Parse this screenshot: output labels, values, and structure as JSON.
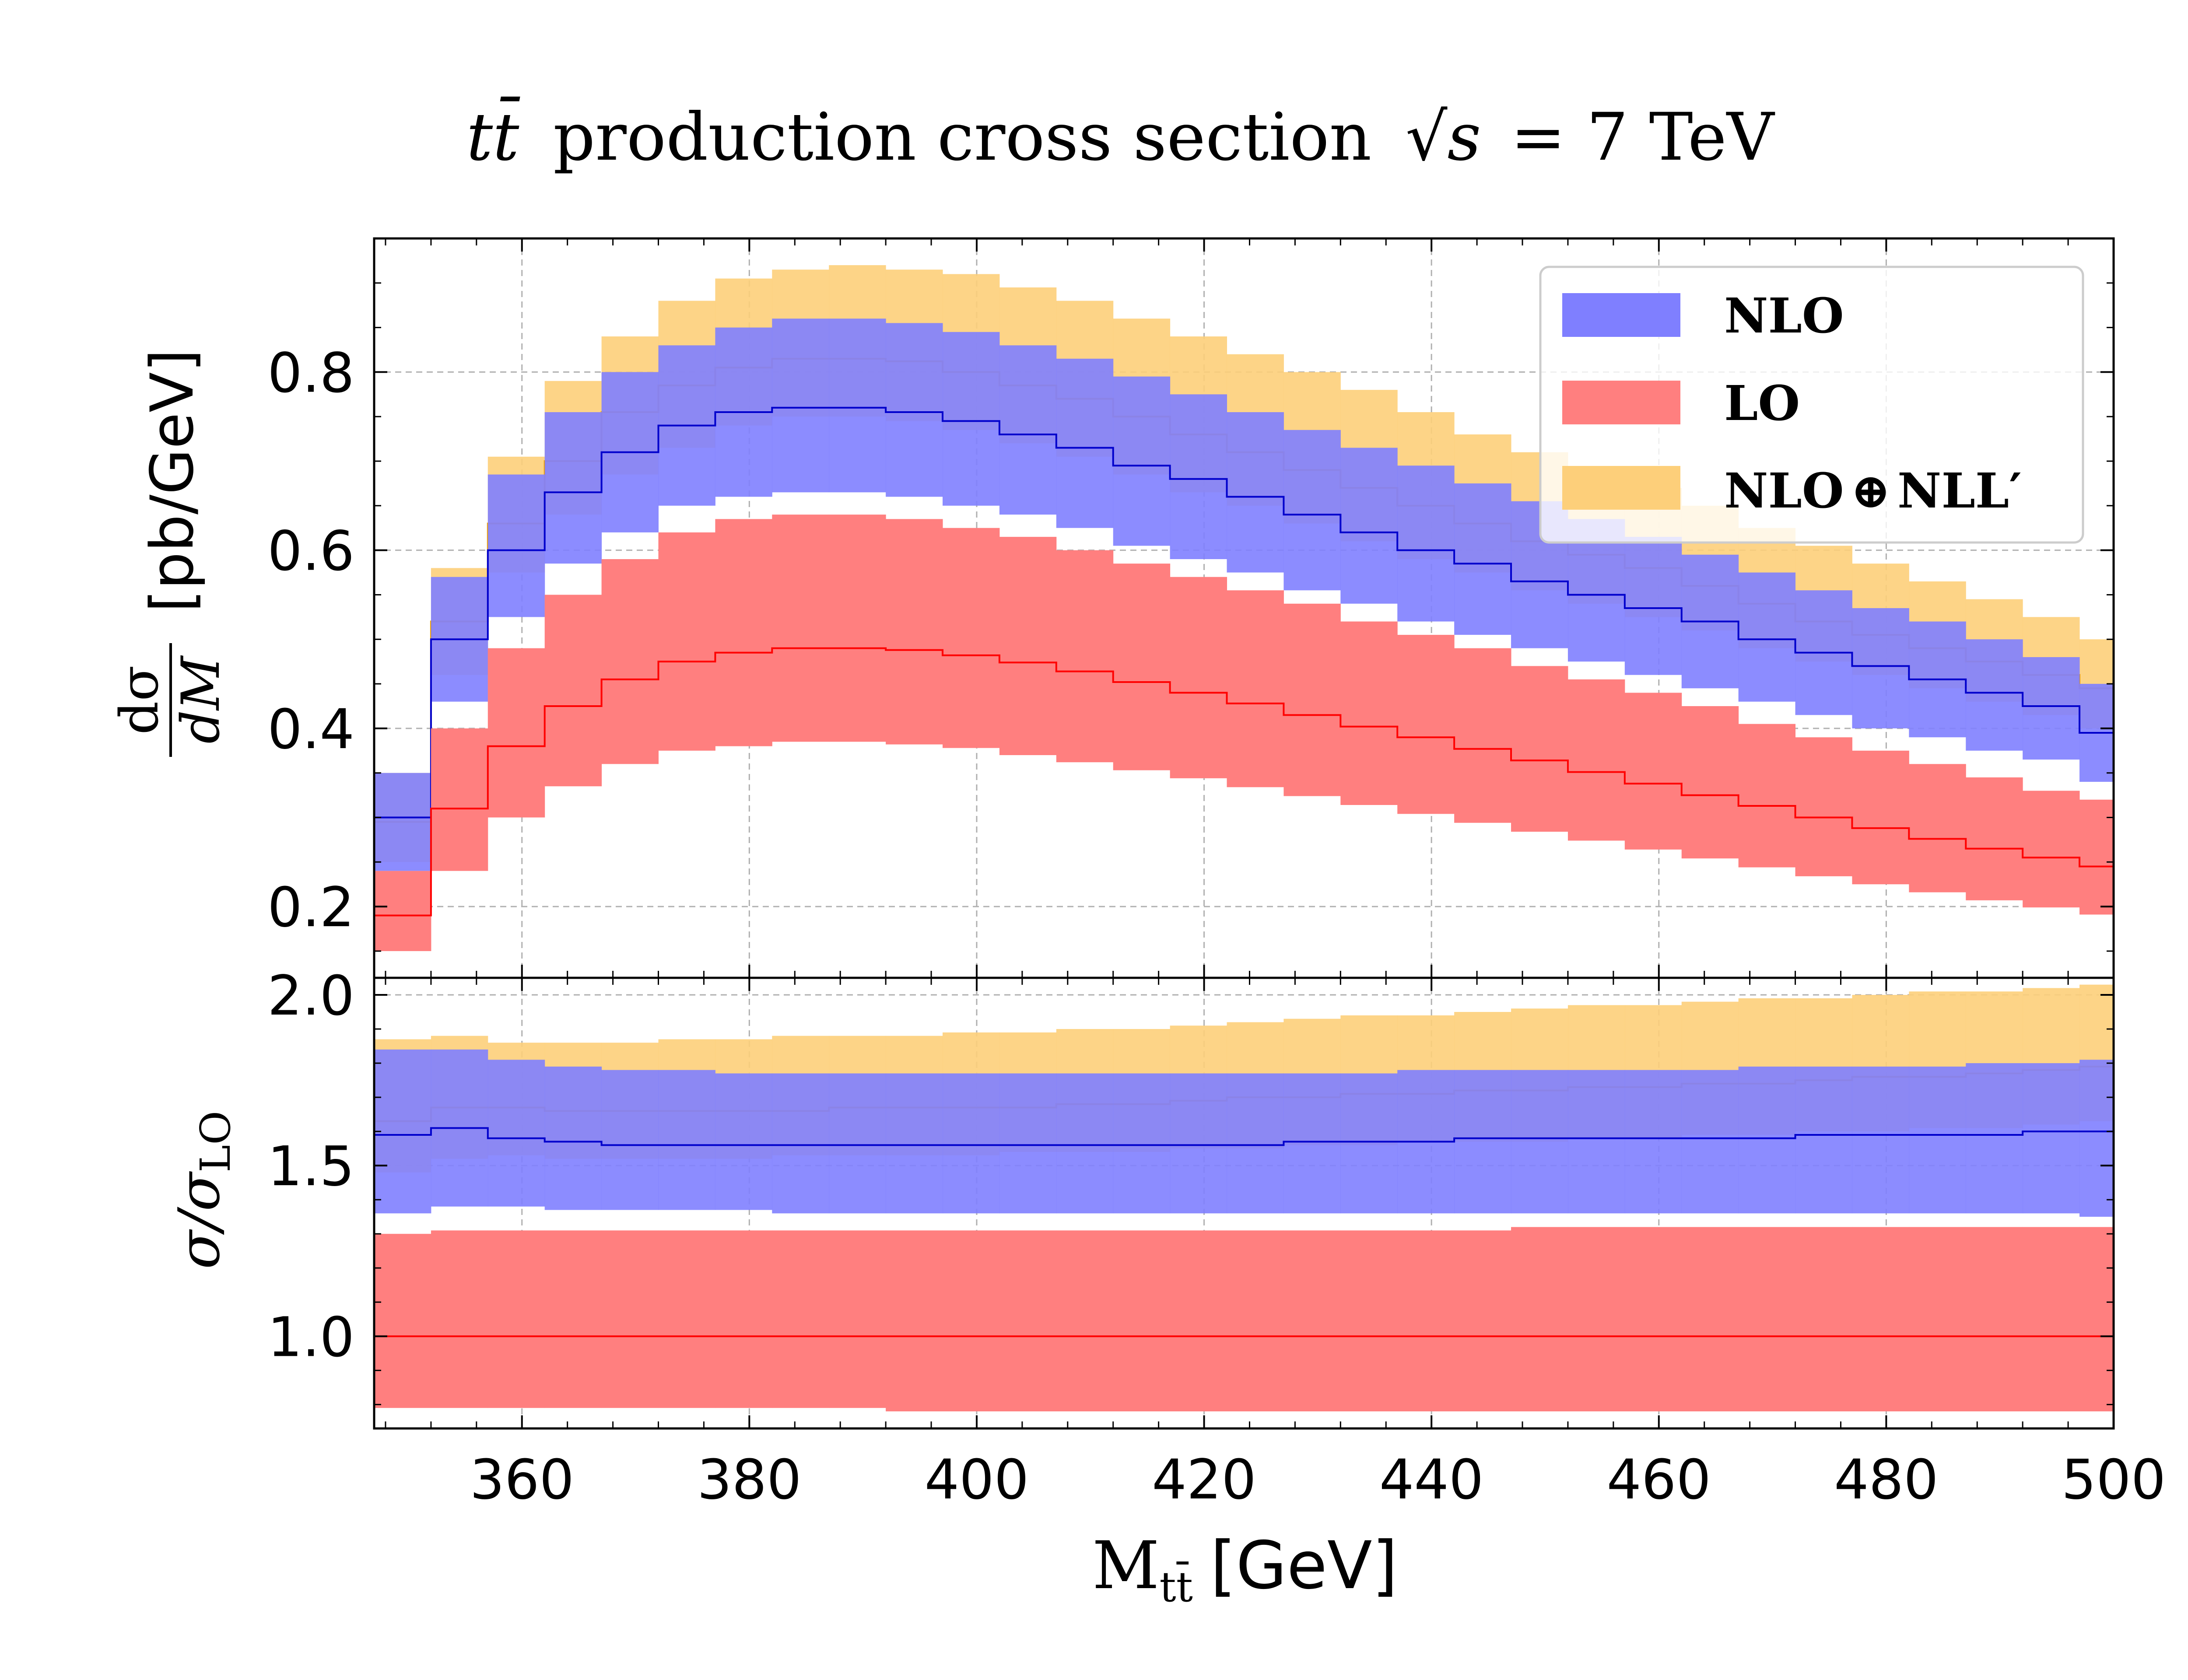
{
  "chart_data": {
    "type": "area",
    "title_parts": [
      "tt̄",
      "production cross section",
      "√s",
      "= 7 TeV"
    ],
    "xlabel": "M",
    "xlabel_sub": "tt̄",
    "xlabel_unit": "[GeV]",
    "xlim": [
      347,
      500
    ],
    "x_ticks": [
      "360",
      "380",
      "400",
      "420",
      "440",
      "460",
      "480",
      "500"
    ],
    "bin_edges": [
      347,
      352,
      357,
      362,
      367,
      372,
      377,
      382,
      387,
      392,
      397,
      402,
      407,
      412,
      417,
      422,
      427,
      432,
      437,
      442,
      447,
      452,
      457,
      462,
      467,
      472,
      477,
      482,
      487,
      492,
      497,
      500
    ],
    "colors": {
      "NLO": "#7f7fff",
      "LO": "#ff7f7f",
      "NLO+NLL": "#fdcf7a",
      "NLO_line": "#0000cc",
      "LO_line": "#ff0000",
      "NLL_line": "#f0a000"
    },
    "legend": {
      "placement": "top-right",
      "entries": [
        {
          "key": "NLO",
          "label": "NLO"
        },
        {
          "key": "LO",
          "label": "LO"
        },
        {
          "key": "NLO+NLL",
          "label_a": "NLO",
          "label_op": "⊕",
          "label_b": "NLL′"
        }
      ]
    },
    "panels": [
      {
        "name": "distribution",
        "ylabel_num": "dσ",
        "ylabel_den": "dM",
        "ylabel_unit": "[pb/GeV]",
        "ylim": [
          0.12,
          0.95
        ],
        "y_ticks": [
          "0.2",
          "0.4",
          "0.6",
          "0.8"
        ],
        "series": [
          {
            "key": "NLO+NLL",
            "central": [
              0.295,
              0.52,
              0.63,
              0.7,
              0.755,
              0.785,
              0.805,
              0.815,
              0.815,
              0.812,
              0.8,
              0.785,
              0.77,
              0.75,
              0.73,
              0.71,
              0.69,
              0.67,
              0.65,
              0.63,
              0.61,
              0.595,
              0.58,
              0.56,
              0.54,
              0.52,
              0.505,
              0.49,
              0.475,
              0.46,
              0.445
            ],
            "low": [
              0.25,
              0.46,
              0.575,
              0.64,
              0.685,
              0.715,
              0.74,
              0.75,
              0.75,
              0.745,
              0.735,
              0.72,
              0.705,
              0.685,
              0.665,
              0.65,
              0.63,
              0.61,
              0.59,
              0.575,
              0.555,
              0.54,
              0.525,
              0.51,
              0.49,
              0.475,
              0.46,
              0.445,
              0.43,
              0.415,
              0.4
            ],
            "high": [
              0.35,
              0.58,
              0.705,
              0.79,
              0.84,
              0.88,
              0.905,
              0.915,
              0.92,
              0.915,
              0.91,
              0.895,
              0.88,
              0.86,
              0.84,
              0.82,
              0.8,
              0.78,
              0.755,
              0.73,
              0.71,
              0.69,
              0.67,
              0.65,
              0.625,
              0.605,
              0.585,
              0.565,
              0.545,
              0.525,
              0.5
            ]
          },
          {
            "key": "NLO",
            "central": [
              0.3,
              0.5,
              0.6,
              0.665,
              0.71,
              0.74,
              0.755,
              0.76,
              0.76,
              0.755,
              0.745,
              0.73,
              0.715,
              0.695,
              0.68,
              0.66,
              0.64,
              0.62,
              0.6,
              0.585,
              0.565,
              0.55,
              0.535,
              0.52,
              0.5,
              0.485,
              0.47,
              0.455,
              0.44,
              0.425,
              0.395
            ],
            "low": [
              0.24,
              0.43,
              0.525,
              0.585,
              0.62,
              0.65,
              0.66,
              0.665,
              0.665,
              0.66,
              0.65,
              0.64,
              0.625,
              0.605,
              0.59,
              0.575,
              0.555,
              0.54,
              0.52,
              0.505,
              0.49,
              0.475,
              0.46,
              0.445,
              0.43,
              0.415,
              0.4,
              0.39,
              0.375,
              0.365,
              0.34
            ],
            "high": [
              0.35,
              0.57,
              0.685,
              0.755,
              0.8,
              0.83,
              0.85,
              0.86,
              0.86,
              0.855,
              0.845,
              0.83,
              0.815,
              0.795,
              0.775,
              0.755,
              0.735,
              0.715,
              0.695,
              0.675,
              0.655,
              0.635,
              0.615,
              0.595,
              0.575,
              0.555,
              0.535,
              0.52,
              0.5,
              0.48,
              0.45
            ]
          },
          {
            "key": "LO",
            "central": [
              0.19,
              0.31,
              0.38,
              0.425,
              0.455,
              0.475,
              0.485,
              0.49,
              0.49,
              0.488,
              0.482,
              0.474,
              0.464,
              0.452,
              0.44,
              0.428,
              0.415,
              0.402,
              0.39,
              0.377,
              0.364,
              0.351,
              0.338,
              0.325,
              0.313,
              0.3,
              0.288,
              0.276,
              0.265,
              0.255,
              0.245
            ],
            "low": [
              0.15,
              0.24,
              0.3,
              0.335,
              0.36,
              0.375,
              0.38,
              0.385,
              0.385,
              0.382,
              0.378,
              0.37,
              0.362,
              0.353,
              0.344,
              0.334,
              0.324,
              0.314,
              0.304,
              0.294,
              0.284,
              0.274,
              0.264,
              0.254,
              0.244,
              0.234,
              0.225,
              0.216,
              0.207,
              0.199,
              0.191
            ],
            "high": [
              0.24,
              0.4,
              0.49,
              0.55,
              0.59,
              0.62,
              0.635,
              0.64,
              0.64,
              0.635,
              0.625,
              0.615,
              0.6,
              0.585,
              0.57,
              0.555,
              0.54,
              0.52,
              0.505,
              0.49,
              0.47,
              0.455,
              0.44,
              0.425,
              0.405,
              0.39,
              0.375,
              0.36,
              0.345,
              0.33,
              0.32
            ]
          }
        ]
      },
      {
        "name": "ratio",
        "ylabel_main": "σ/σ",
        "ylabel_sub": "LO",
        "ylim": [
          0.73,
          2.05
        ],
        "y_ticks": [
          "1.0",
          "1.5",
          "2.0"
        ],
        "series": [
          {
            "key": "NLO+NLL",
            "central": [
              1.63,
              1.67,
              1.67,
              1.66,
              1.66,
              1.66,
              1.66,
              1.66,
              1.67,
              1.67,
              1.67,
              1.67,
              1.68,
              1.68,
              1.69,
              1.7,
              1.7,
              1.71,
              1.71,
              1.72,
              1.72,
              1.73,
              1.73,
              1.74,
              1.74,
              1.75,
              1.76,
              1.76,
              1.77,
              1.78,
              1.79
            ],
            "low": [
              1.48,
              1.52,
              1.53,
              1.52,
              1.52,
              1.52,
              1.52,
              1.53,
              1.53,
              1.53,
              1.53,
              1.54,
              1.54,
              1.54,
              1.55,
              1.55,
              1.56,
              1.56,
              1.57,
              1.57,
              1.57,
              1.58,
              1.58,
              1.59,
              1.59,
              1.6,
              1.6,
              1.61,
              1.61,
              1.62,
              1.63
            ],
            "high": [
              1.87,
              1.88,
              1.86,
              1.86,
              1.86,
              1.87,
              1.87,
              1.88,
              1.88,
              1.88,
              1.89,
              1.89,
              1.9,
              1.9,
              1.91,
              1.92,
              1.93,
              1.94,
              1.94,
              1.95,
              1.96,
              1.97,
              1.97,
              1.98,
              1.99,
              1.99,
              2.0,
              2.01,
              2.01,
              2.02,
              2.03
            ]
          },
          {
            "key": "NLO",
            "central": [
              1.59,
              1.61,
              1.58,
              1.57,
              1.56,
              1.56,
              1.56,
              1.56,
              1.56,
              1.56,
              1.56,
              1.56,
              1.56,
              1.56,
              1.56,
              1.56,
              1.57,
              1.57,
              1.57,
              1.58,
              1.58,
              1.58,
              1.58,
              1.58,
              1.58,
              1.59,
              1.59,
              1.59,
              1.59,
              1.6,
              1.6
            ],
            "low": [
              1.36,
              1.38,
              1.38,
              1.37,
              1.37,
              1.37,
              1.37,
              1.36,
              1.36,
              1.36,
              1.36,
              1.36,
              1.36,
              1.36,
              1.36,
              1.36,
              1.36,
              1.36,
              1.36,
              1.36,
              1.36,
              1.36,
              1.36,
              1.36,
              1.36,
              1.36,
              1.36,
              1.36,
              1.36,
              1.36,
              1.35
            ],
            "high": [
              1.84,
              1.84,
              1.81,
              1.79,
              1.78,
              1.78,
              1.77,
              1.77,
              1.77,
              1.77,
              1.77,
              1.77,
              1.77,
              1.77,
              1.77,
              1.77,
              1.77,
              1.77,
              1.78,
              1.78,
              1.78,
              1.78,
              1.78,
              1.78,
              1.79,
              1.79,
              1.79,
              1.79,
              1.8,
              1.8,
              1.81
            ]
          },
          {
            "key": "LO",
            "central": [
              1,
              1,
              1,
              1,
              1,
              1,
              1,
              1,
              1,
              1,
              1,
              1,
              1,
              1,
              1,
              1,
              1,
              1,
              1,
              1,
              1,
              1,
              1,
              1,
              1,
              1,
              1,
              1,
              1,
              1,
              1
            ],
            "low": [
              0.79,
              0.79,
              0.79,
              0.79,
              0.79,
              0.79,
              0.79,
              0.79,
              0.79,
              0.78,
              0.78,
              0.78,
              0.78,
              0.78,
              0.78,
              0.78,
              0.78,
              0.78,
              0.78,
              0.78,
              0.78,
              0.78,
              0.78,
              0.78,
              0.78,
              0.78,
              0.78,
              0.78,
              0.78,
              0.78,
              0.78
            ],
            "high": [
              1.3,
              1.31,
              1.31,
              1.31,
              1.31,
              1.31,
              1.31,
              1.31,
              1.31,
              1.31,
              1.31,
              1.31,
              1.31,
              1.31,
              1.31,
              1.31,
              1.31,
              1.31,
              1.31,
              1.31,
              1.32,
              1.32,
              1.32,
              1.32,
              1.32,
              1.32,
              1.32,
              1.32,
              1.32,
              1.32,
              1.32
            ]
          }
        ]
      }
    ]
  }
}
